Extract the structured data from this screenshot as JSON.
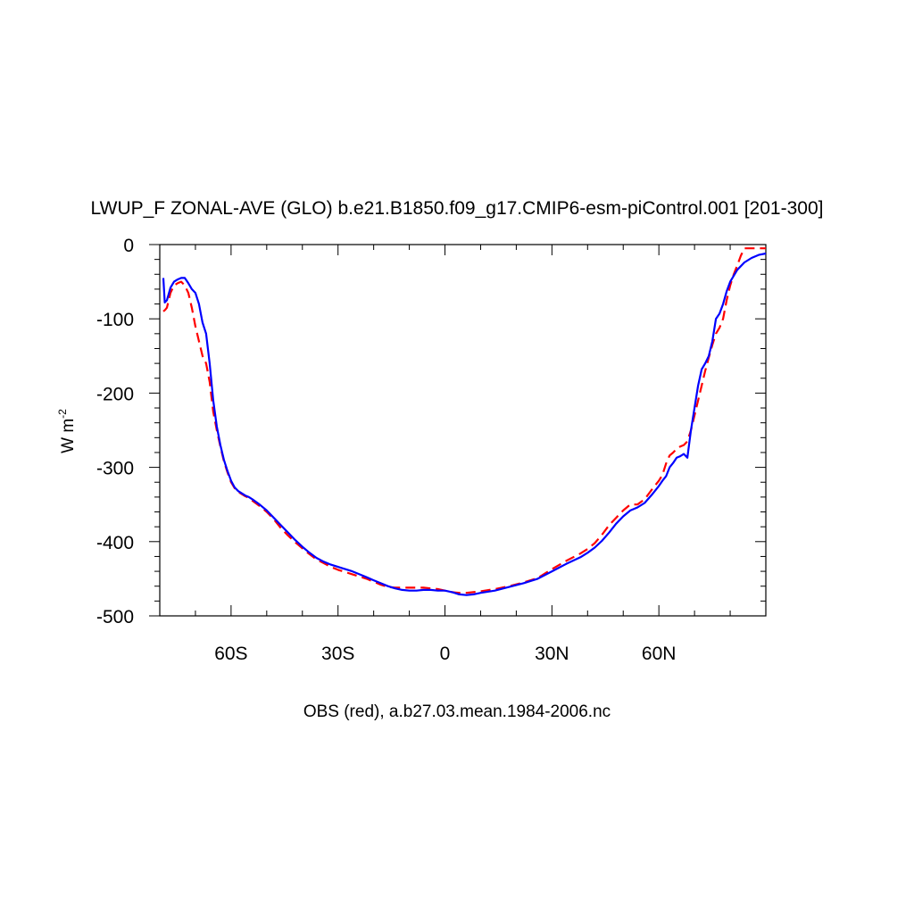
{
  "chart_data": {
    "type": "line",
    "title": "LWUP_F ZONAL-AVE (GLO) b.e21.B1850.f09_g17.CMIP6-esm-piControl.001 [201-300]",
    "ylabel_base": "W m",
    "ylabel_exp": "-2",
    "footer": "OBS (red), a.b27.03.mean.1984-2006.nc",
    "xlim": [
      -80,
      90
    ],
    "ylim": [
      -500,
      0
    ],
    "xticks": [
      {
        "value": -60,
        "label": "60S"
      },
      {
        "value": -30,
        "label": "30S"
      },
      {
        "value": 0,
        "label": "0"
      },
      {
        "value": 30,
        "label": "30N"
      },
      {
        "value": 60,
        "label": "60N"
      }
    ],
    "yticks": [
      {
        "value": 0,
        "label": "0"
      },
      {
        "value": -100,
        "label": "-100"
      },
      {
        "value": -200,
        "label": "-200"
      },
      {
        "value": -300,
        "label": "-300"
      },
      {
        "value": -400,
        "label": "-400"
      },
      {
        "value": -500,
        "label": "-500"
      }
    ],
    "grid": false,
    "series": [
      {
        "color": "#0000ff",
        "style": "solid",
        "x": [
          -79,
          -78.6,
          -78,
          -77,
          -76,
          -75,
          -74,
          -73,
          -72,
          -71,
          -70,
          -69,
          -68,
          -67,
          -66,
          -65,
          -64,
          -63,
          -62,
          -61,
          -60,
          -59,
          -58,
          -57,
          -56,
          -55,
          -54,
          -52,
          -50,
          -48,
          -46,
          -44,
          -42,
          -40,
          -38,
          -36,
          -34,
          -32,
          -30,
          -28,
          -26,
          -24,
          -22,
          -20,
          -18,
          -16,
          -14,
          -12,
          -10,
          -8,
          -6,
          -4,
          -2,
          0,
          2,
          4,
          6,
          8,
          10,
          14,
          18,
          22,
          26,
          30,
          34,
          38,
          40,
          42,
          44,
          46,
          48,
          50,
          52,
          54,
          56,
          58,
          60,
          61,
          62,
          63,
          64,
          65,
          66,
          67,
          68,
          69,
          70,
          71,
          72,
          73,
          74,
          75,
          76,
          77,
          78,
          79,
          80,
          82,
          84,
          86,
          88,
          90
        ],
        "y": [
          -45,
          -78,
          -75,
          -58,
          -50,
          -47,
          -45,
          -45,
          -52,
          -60,
          -65,
          -80,
          -105,
          -120,
          -160,
          -210,
          -245,
          -270,
          -290,
          -305,
          -318,
          -327,
          -332,
          -335,
          -338,
          -340,
          -343,
          -350,
          -358,
          -368,
          -378,
          -388,
          -398,
          -407,
          -415,
          -422,
          -427,
          -431,
          -434,
          -437,
          -440,
          -444,
          -448,
          -452,
          -456,
          -460,
          -463,
          -465,
          -466,
          -466,
          -465,
          -465,
          -466,
          -466,
          -468,
          -471,
          -472,
          -471,
          -469,
          -466,
          -461,
          -456,
          -450,
          -440,
          -430,
          -421,
          -415,
          -408,
          -399,
          -388,
          -376,
          -366,
          -358,
          -354,
          -348,
          -337,
          -325,
          -318,
          -312,
          -300,
          -294,
          -287,
          -285,
          -282,
          -287,
          -250,
          -220,
          -190,
          -168,
          -160,
          -150,
          -130,
          -100,
          -93,
          -80,
          -63,
          -50,
          -34,
          -24,
          -18,
          -14,
          -12
        ]
      },
      {
        "color": "#ff0000",
        "style": "dashed",
        "x": [
          -79,
          -78.5,
          -78,
          -77,
          -76,
          -75,
          -74,
          -73,
          -72,
          -71,
          -70,
          -69,
          -68,
          -67,
          -66,
          -65,
          -64,
          -63,
          -62,
          -61,
          -60,
          -59,
          -58,
          -57,
          -56,
          -55,
          -54,
          -52,
          -50,
          -48,
          -46,
          -44,
          -42,
          -40,
          -38,
          -36,
          -34,
          -32,
          -30,
          -28,
          -26,
          -24,
          -22,
          -20,
          -18,
          -16,
          -14,
          -12,
          -10,
          -8,
          -6,
          -4,
          -2,
          0,
          2,
          4,
          6,
          8,
          10,
          14,
          18,
          22,
          26,
          30,
          34,
          38,
          40,
          42,
          44,
          46,
          48,
          50,
          52,
          54,
          56,
          58,
          60,
          61,
          62,
          63,
          64,
          65,
          66,
          67,
          68,
          69,
          70,
          71,
          72,
          73,
          74,
          75,
          76,
          77,
          78,
          79,
          80,
          81,
          82,
          83,
          84,
          86,
          88,
          90
        ],
        "y": [
          -90,
          -88,
          -85,
          -65,
          -55,
          -52,
          -50,
          -55,
          -65,
          -85,
          -110,
          -130,
          -150,
          -160,
          -185,
          -225,
          -250,
          -272,
          -292,
          -307,
          -320,
          -328,
          -333,
          -336,
          -339,
          -341,
          -345,
          -352,
          -360,
          -370,
          -382,
          -392,
          -401,
          -409,
          -417,
          -424,
          -429,
          -434,
          -438,
          -441,
          -444,
          -447,
          -450,
          -454,
          -458,
          -461,
          -462,
          -462,
          -462,
          -462,
          -462,
          -463,
          -464,
          -466,
          -468,
          -469,
          -469,
          -468,
          -467,
          -464,
          -460,
          -455,
          -449,
          -437,
          -426,
          -416,
          -410,
          -402,
          -391,
          -378,
          -368,
          -358,
          -350,
          -350,
          -343,
          -330,
          -318,
          -310,
          -295,
          -284,
          -280,
          -275,
          -272,
          -270,
          -265,
          -250,
          -230,
          -210,
          -190,
          -170,
          -152,
          -135,
          -120,
          -112,
          -100,
          -75,
          -55,
          -40,
          -28,
          -15,
          -5,
          -5,
          -5,
          -5
        ]
      }
    ]
  }
}
